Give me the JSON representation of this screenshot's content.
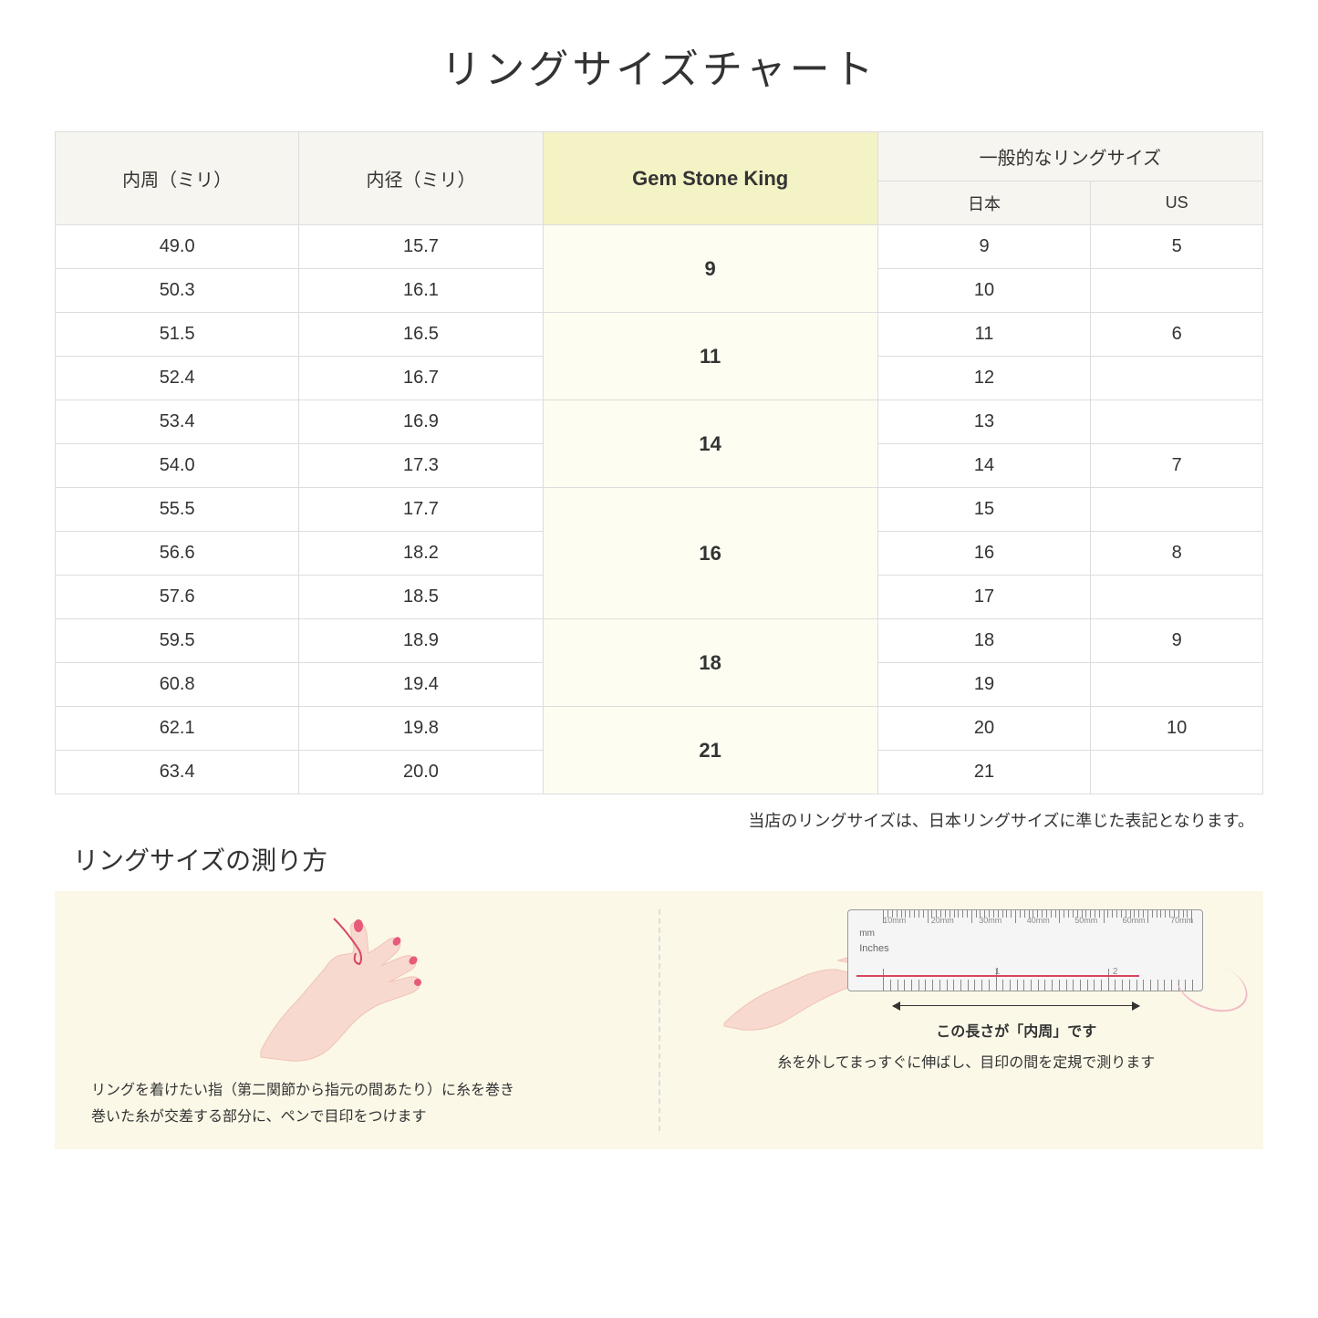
{
  "title": "リングサイズチャート",
  "table": {
    "headers": {
      "circumference": "内周（ミリ）",
      "diameter": "内径（ミリ）",
      "gemstone": "Gem Stone King",
      "general": "一般的なリングサイズ",
      "japan": "日本",
      "us": "US"
    },
    "groups": [
      {
        "gsk": "9",
        "rows": [
          {
            "circ": "49.0",
            "dia": "15.7",
            "jp": "9",
            "us": "5"
          },
          {
            "circ": "50.3",
            "dia": "16.1",
            "jp": "10",
            "us": ""
          }
        ]
      },
      {
        "gsk": "11",
        "rows": [
          {
            "circ": "51.5",
            "dia": "16.5",
            "jp": "11",
            "us": "6"
          },
          {
            "circ": "52.4",
            "dia": "16.7",
            "jp": "12",
            "us": ""
          }
        ]
      },
      {
        "gsk": "14",
        "rows": [
          {
            "circ": "53.4",
            "dia": "16.9",
            "jp": "13",
            "us": ""
          },
          {
            "circ": "54.0",
            "dia": "17.3",
            "jp": "14",
            "us": "7"
          }
        ]
      },
      {
        "gsk": "16",
        "rows": [
          {
            "circ": "55.5",
            "dia": "17.7",
            "jp": "15",
            "us": ""
          },
          {
            "circ": "56.6",
            "dia": "18.2",
            "jp": "16",
            "us": "8"
          },
          {
            "circ": "57.6",
            "dia": "18.5",
            "jp": "17",
            "us": ""
          }
        ]
      },
      {
        "gsk": "18",
        "rows": [
          {
            "circ": "59.5",
            "dia": "18.9",
            "jp": "18",
            "us": "9"
          },
          {
            "circ": "60.8",
            "dia": "19.4",
            "jp": "19",
            "us": ""
          }
        ]
      },
      {
        "gsk": "21",
        "rows": [
          {
            "circ": "62.1",
            "dia": "19.8",
            "jp": "20",
            "us": "10"
          },
          {
            "circ": "63.4",
            "dia": "20.0",
            "jp": "21",
            "us": ""
          }
        ]
      }
    ]
  },
  "note": "当店のリングサイズは、日本リングサイズに準じた表記となります。",
  "howto": {
    "title": "リングサイズの測り方",
    "left_caption": "リングを着けたい指（第二関節から指元の間あたり）に糸を巻き\n巻いた糸が交差する部分に、ペンで目印をつけます",
    "right_caption": "糸を外してまっすぐに伸ばし、目印の間を定規で測ります",
    "arrow_label": "この長さが「内周」です",
    "ruler": {
      "mm_label": "mm",
      "inches_label": "Inches",
      "mm_marks": [
        "10mm",
        "20mm",
        "30mm",
        "40mm",
        "50mm",
        "60mm",
        "70mm"
      ],
      "in_marks": [
        "1",
        "2"
      ]
    }
  },
  "colors": {
    "header_bg": "#f7f5f0",
    "highlight_header_bg": "#f3f3c6",
    "highlight_cell_bg": "#fdfdf2",
    "howto_bg": "#fbf8e8",
    "skin": "#f8d9cf",
    "skin_dark": "#f0c4b4",
    "nail": "#e85a7a",
    "thread": "#d94560",
    "thread_light": "#f3b8c4"
  }
}
